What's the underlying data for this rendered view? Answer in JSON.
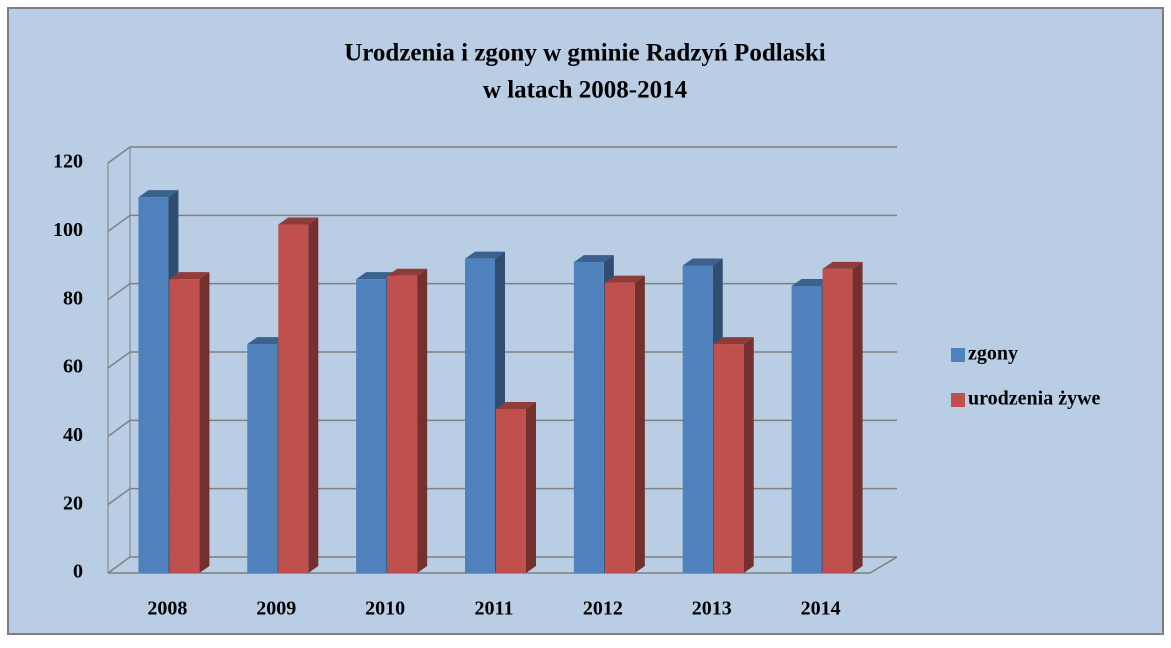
{
  "chart_data": {
    "type": "bar",
    "title": [
      "Urodzenia i zgony w gminie Radzyń Podlaski",
      "w latach 2008-2014"
    ],
    "categories": [
      "2008",
      "2009",
      "2010",
      "2011",
      "2012",
      "2013",
      "2014"
    ],
    "series": [
      {
        "name": "zgony",
        "color": "#4f81bd",
        "values": [
          110,
          67,
          86,
          92,
          91,
          90,
          84
        ]
      },
      {
        "name": "urodzenia żywe",
        "color": "#c0504d",
        "values": [
          86,
          102,
          87,
          48,
          85,
          67,
          89
        ]
      }
    ],
    "ylim": [
      0,
      120
    ],
    "yticks": [
      0,
      20,
      40,
      60,
      80,
      100,
      120
    ],
    "grid": true,
    "legend": "right"
  }
}
